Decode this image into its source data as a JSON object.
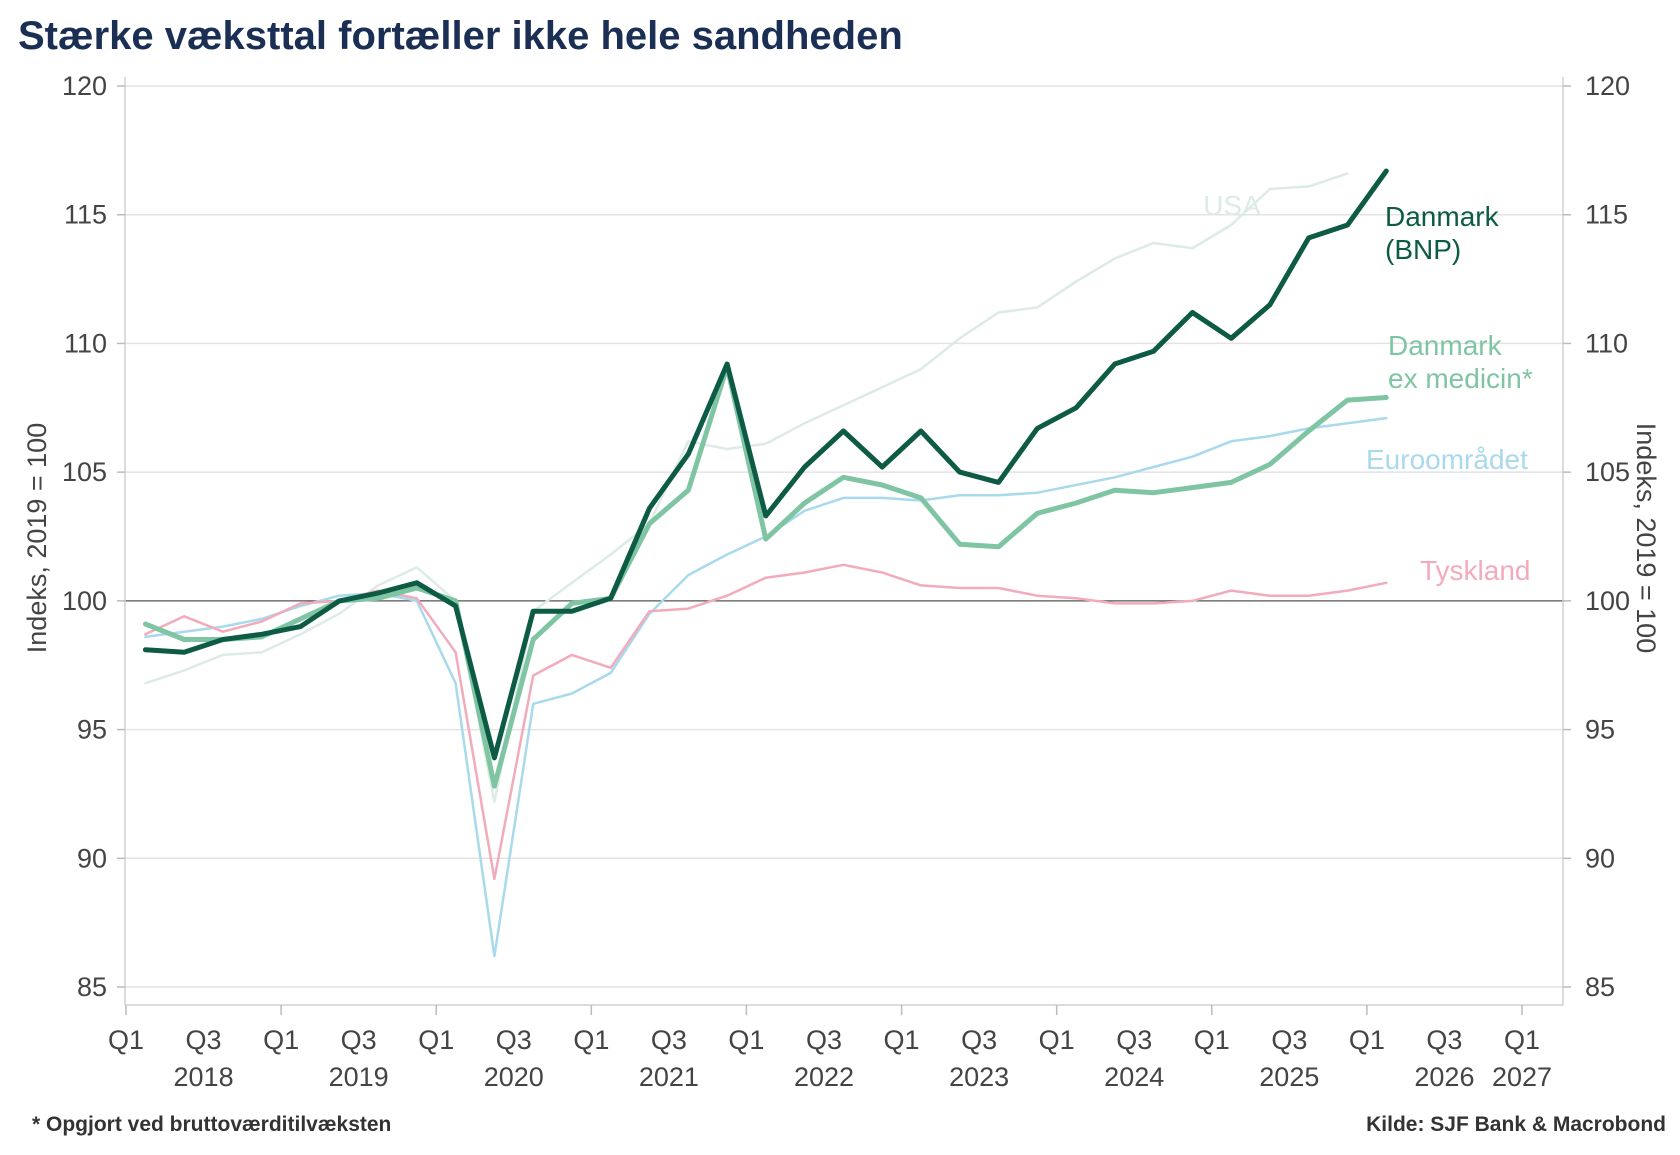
{
  "title": "Stærke væksttal fortæller ikke hele sandheden",
  "footnote": "* Opgjort ved bruttoværditilvæksten",
  "source": "Kilde: SJF Bank & Macrobond",
  "chart_data": {
    "type": "line",
    "ylabel_left": "Indeks, 2019 = 100",
    "ylabel_right": "Indeks, 2019 = 100",
    "ylim": [
      85,
      120
    ],
    "yticks": [
      85,
      90,
      95,
      100,
      105,
      110,
      115,
      120
    ],
    "reference_line": 100,
    "grid": true,
    "x_range": [
      2018.0,
      2027.25
    ],
    "xticks": [
      {
        "x": 2018.0,
        "label": "Q1"
      },
      {
        "x": 2018.5,
        "label": "Q3"
      },
      {
        "x": 2019.0,
        "label": "Q1"
      },
      {
        "x": 2019.5,
        "label": "Q3"
      },
      {
        "x": 2020.0,
        "label": "Q1"
      },
      {
        "x": 2020.5,
        "label": "Q3"
      },
      {
        "x": 2021.0,
        "label": "Q1"
      },
      {
        "x": 2021.5,
        "label": "Q3"
      },
      {
        "x": 2022.0,
        "label": "Q1"
      },
      {
        "x": 2022.5,
        "label": "Q3"
      },
      {
        "x": 2023.0,
        "label": "Q1"
      },
      {
        "x": 2023.5,
        "label": "Q3"
      },
      {
        "x": 2024.0,
        "label": "Q1"
      },
      {
        "x": 2024.5,
        "label": "Q3"
      },
      {
        "x": 2025.0,
        "label": "Q1"
      },
      {
        "x": 2025.5,
        "label": "Q3"
      },
      {
        "x": 2026.0,
        "label": "Q1"
      },
      {
        "x": 2026.5,
        "label": "Q3"
      },
      {
        "x": 2027.0,
        "label": "Q1"
      }
    ],
    "year_labels": [
      {
        "x": 2018.5,
        "label": "2018"
      },
      {
        "x": 2019.5,
        "label": "2019"
      },
      {
        "x": 2020.5,
        "label": "2020"
      },
      {
        "x": 2021.5,
        "label": "2021"
      },
      {
        "x": 2022.5,
        "label": "2022"
      },
      {
        "x": 2023.5,
        "label": "2023"
      },
      {
        "x": 2024.5,
        "label": "2024"
      },
      {
        "x": 2025.5,
        "label": "2025"
      },
      {
        "x": 2026.5,
        "label": "2026"
      },
      {
        "x": 2027.0,
        "label": "2027"
      }
    ],
    "x": [
      2018.125,
      2018.375,
      2018.625,
      2018.875,
      2019.125,
      2019.375,
      2019.625,
      2019.875,
      2020.125,
      2020.375,
      2020.625,
      2020.875,
      2021.125,
      2021.375,
      2021.625,
      2021.875,
      2022.125,
      2022.375,
      2022.625,
      2022.875,
      2023.125,
      2023.375,
      2023.625,
      2023.875,
      2024.125,
      2024.375,
      2024.625,
      2024.875,
      2025.125,
      2025.375,
      2025.625,
      2025.875,
      2026.125
    ],
    "series": [
      {
        "name": "USA",
        "color": "#dcebe5",
        "width": 2.5,
        "values": [
          96.8,
          97.3,
          97.9,
          98.0,
          98.7,
          99.5,
          100.6,
          101.3,
          100.0,
          92.2,
          99.6,
          100.7,
          101.8,
          103.0,
          106.2,
          105.9,
          106.1,
          106.9,
          107.6,
          108.3,
          109.0,
          110.2,
          111.2,
          111.4,
          112.4,
          113.3,
          113.9,
          113.7,
          114.6,
          116.0,
          116.1,
          116.6,
          null
        ]
      },
      {
        "name": "Euroområdet",
        "color": "#a9d9ec",
        "width": 2.5,
        "values": [
          98.6,
          98.8,
          99.0,
          99.3,
          99.8,
          100.2,
          100.3,
          100.0,
          96.8,
          86.2,
          96.0,
          96.4,
          97.2,
          99.5,
          101.0,
          101.8,
          102.5,
          103.5,
          104.0,
          104.0,
          103.9,
          104.1,
          104.1,
          104.2,
          104.5,
          104.8,
          105.2,
          105.6,
          106.2,
          106.4,
          106.7,
          106.9,
          107.1
        ]
      },
      {
        "name": "Tyskland",
        "color": "#f2abbb",
        "width": 2.5,
        "values": [
          98.7,
          99.4,
          98.8,
          99.2,
          99.9,
          100.0,
          100.4,
          100.1,
          98.0,
          89.2,
          97.1,
          97.9,
          97.4,
          99.6,
          99.7,
          100.2,
          100.9,
          101.1,
          101.4,
          101.1,
          100.6,
          100.5,
          100.5,
          100.2,
          100.1,
          99.9,
          99.9,
          100.0,
          100.4,
          100.2,
          100.2,
          100.4,
          100.7
        ]
      },
      {
        "name": "Danmark ex medicin*",
        "color": "#7fc5a3",
        "width": 5,
        "values": [
          99.1,
          98.5,
          98.5,
          98.6,
          99.3,
          100.0,
          100.1,
          100.5,
          100.0,
          92.8,
          98.5,
          99.9,
          100.1,
          103.0,
          104.3,
          109.1,
          102.4,
          103.8,
          104.8,
          104.5,
          104.0,
          102.2,
          102.1,
          103.4,
          103.8,
          104.3,
          104.2,
          104.4,
          104.6,
          105.3,
          106.6,
          107.8,
          107.9
        ]
      },
      {
        "name": "Danmark (BNP)",
        "color": "#0d5a45",
        "width": 5,
        "values": [
          98.1,
          98.0,
          98.5,
          98.7,
          99.0,
          100.0,
          100.3,
          100.7,
          99.8,
          93.9,
          99.6,
          99.6,
          100.1,
          103.6,
          105.7,
          109.2,
          103.3,
          105.2,
          106.6,
          105.2,
          106.6,
          105.0,
          104.6,
          106.7,
          107.5,
          109.2,
          109.7,
          111.2,
          110.2,
          111.5,
          114.1,
          114.6,
          116.7
        ]
      }
    ],
    "annotations": [
      {
        "series": "USA",
        "lines": [
          "USA"
        ],
        "color": "#dcebe5"
      },
      {
        "series": "Danmark (BNP)",
        "lines": [
          "Danmark",
          "(BNP)"
        ],
        "color": "#0d5a45"
      },
      {
        "series": "Danmark ex medicin*",
        "lines": [
          "Danmark",
          "ex medicin*"
        ],
        "color": "#7fc5a3"
      },
      {
        "series": "Euroområdet",
        "lines": [
          "Euroområdet"
        ],
        "color": "#a9d9ec"
      },
      {
        "series": "Tyskland",
        "lines": [
          "Tyskland"
        ],
        "color": "#f2abbb"
      }
    ]
  }
}
